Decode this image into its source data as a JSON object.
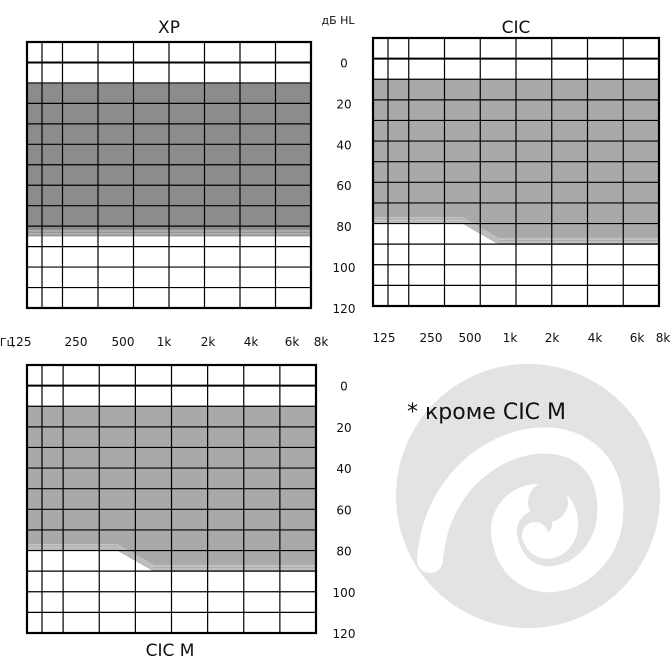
{
  "chart_data": [
    {
      "type": "area",
      "title": "XP",
      "ylabel": "дБ HL",
      "xlabel": "Гц",
      "categories": [
        "125",
        "250",
        "500",
        "1k",
        "2k",
        "4k",
        "6k",
        "8k"
      ],
      "y_ticks": [
        "0",
        "20",
        "40",
        "60",
        "80",
        "100",
        "120"
      ],
      "ylim": [
        -10,
        120
      ],
      "y_inverted": true,
      "fit_range": {
        "upper_db": [
          10,
          10,
          10,
          10,
          10,
          10,
          10,
          10
        ],
        "lower_db": [
          85,
          85,
          85,
          85,
          85,
          85,
          85,
          85
        ]
      },
      "fill_color": "#8c8c8c"
    },
    {
      "type": "area",
      "title": "CIC",
      "categories": [
        "125",
        "250",
        "500",
        "1k",
        "2k",
        "4k",
        "6k",
        "8k"
      ],
      "y_ticks": [
        "0",
        "20",
        "40",
        "60",
        "80",
        "100",
        "120"
      ],
      "ylim": [
        -10,
        120
      ],
      "y_inverted": true,
      "fit_range": {
        "upper_db": [
          10,
          10,
          10,
          10,
          10,
          10,
          10,
          10
        ],
        "lower_db": [
          80,
          80,
          80,
          90,
          90,
          90,
          90,
          90
        ]
      },
      "fill_color": "#a9a9a9"
    },
    {
      "type": "area",
      "title": "CIC M",
      "categories": [
        "125",
        "250",
        "500",
        "1k",
        "2k",
        "4k",
        "6k",
        "8k"
      ],
      "y_ticks": [
        "0",
        "20",
        "40",
        "60",
        "80",
        "100",
        "120"
      ],
      "ylim": [
        -10,
        120
      ],
      "y_inverted": true,
      "fit_range": {
        "upper_db": [
          10,
          10,
          10,
          10,
          10,
          10,
          10,
          10
        ],
        "lower_db": [
          80,
          80,
          80,
          90,
          90,
          90,
          90,
          90
        ]
      },
      "fill_color": "#a9a9a9"
    }
  ],
  "note": "* кроме CIC M",
  "logo_color": "#e3e3e3"
}
